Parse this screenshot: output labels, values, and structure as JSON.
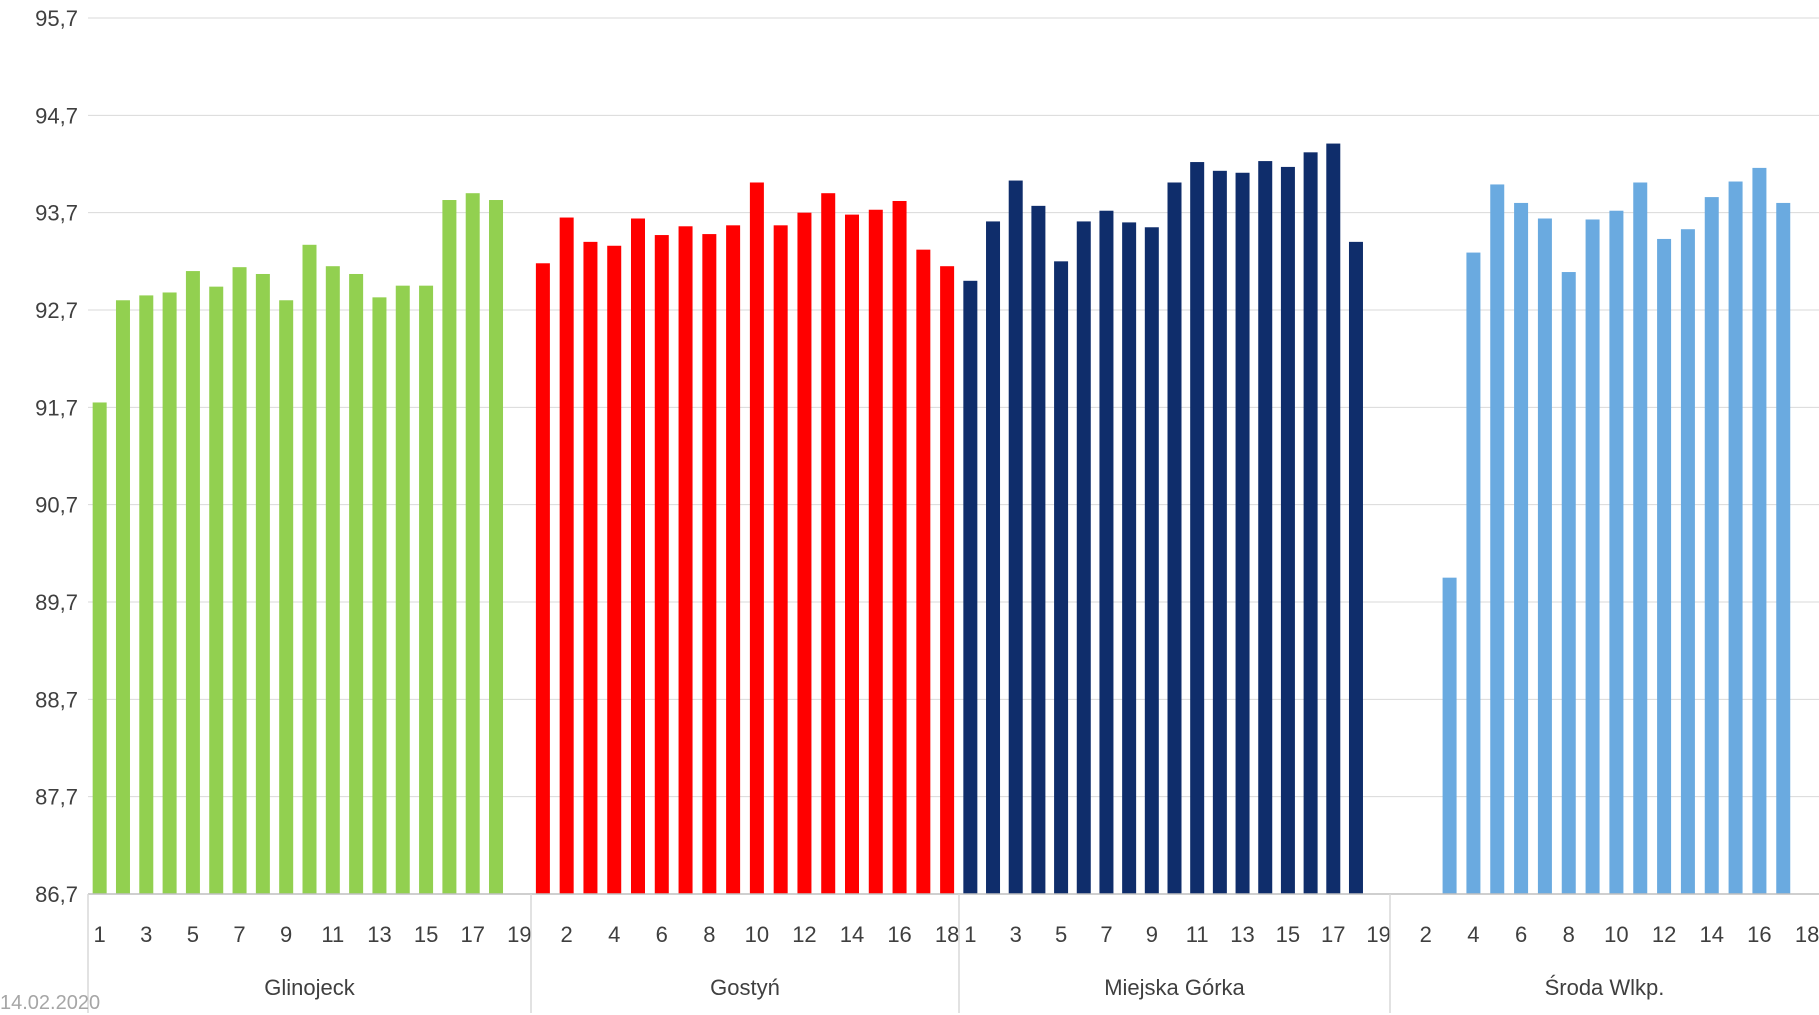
{
  "footer": {
    "date": "14.02.2020"
  },
  "chart_data": {
    "type": "bar",
    "title": "",
    "xlabel": "",
    "ylabel": "",
    "ylim": [
      86.7,
      95.7
    ],
    "yticks": [
      "86,7",
      "87,7",
      "88,7",
      "89,7",
      "90,7",
      "91,7",
      "92,7",
      "93,7",
      "94,7",
      "95,7"
    ],
    "grid": true,
    "legend": "none",
    "groups": [
      {
        "name": "Glinojeck",
        "color": "#92d050",
        "x": [
          1,
          2,
          3,
          4,
          5,
          6,
          7,
          8,
          9,
          10,
          11,
          12,
          13,
          14,
          15,
          16,
          17,
          18,
          19
        ],
        "tick_labels": [
          "1",
          "3",
          "5",
          "7",
          "9",
          "11",
          "13",
          "15",
          "17",
          "19"
        ],
        "values": [
          91.75,
          92.8,
          92.85,
          92.88,
          93.1,
          92.94,
          93.14,
          93.07,
          92.8,
          93.37,
          93.15,
          93.07,
          92.83,
          92.95,
          92.95,
          93.83,
          93.9,
          93.83,
          null
        ]
      },
      {
        "name": "Gostyń",
        "color": "#ff0000",
        "x": [
          1,
          2,
          3,
          4,
          5,
          6,
          7,
          8,
          9,
          10,
          11,
          12,
          13,
          14,
          15,
          16,
          17,
          18
        ],
        "tick_labels": [
          "2",
          "4",
          "6",
          "8",
          "10",
          "12",
          "14",
          "16",
          "18"
        ],
        "values": [
          93.18,
          93.65,
          93.4,
          93.36,
          93.64,
          93.47,
          93.56,
          93.48,
          93.57,
          94.01,
          93.57,
          93.7,
          93.9,
          93.68,
          93.73,
          93.82,
          93.32,
          93.15
        ]
      },
      {
        "name": "Miejska Górka",
        "color": "#0f2d6b",
        "x": [
          1,
          2,
          3,
          4,
          5,
          6,
          7,
          8,
          9,
          10,
          11,
          12,
          13,
          14,
          15,
          16,
          17,
          18,
          19
        ],
        "tick_labels": [
          "1",
          "3",
          "5",
          "7",
          "9",
          "11",
          "13",
          "15",
          "17",
          "19"
        ],
        "values": [
          93.0,
          93.61,
          94.03,
          93.77,
          93.2,
          93.61,
          93.72,
          93.6,
          93.55,
          94.01,
          94.22,
          94.13,
          94.11,
          94.23,
          94.17,
          94.32,
          94.41,
          93.4,
          null
        ]
      },
      {
        "name": "Środa Wlkp.",
        "color": "#6aaae0",
        "x": [
          1,
          2,
          3,
          4,
          5,
          6,
          7,
          8,
          9,
          10,
          11,
          12,
          13,
          14,
          15,
          16,
          17,
          18
        ],
        "tick_labels": [
          "2",
          "4",
          "6",
          "8",
          "10",
          "12",
          "14",
          "16",
          "18"
        ],
        "values": [
          null,
          null,
          89.95,
          93.29,
          93.99,
          93.8,
          93.64,
          93.09,
          93.63,
          93.72,
          94.01,
          93.43,
          93.53,
          93.86,
          94.02,
          94.16,
          93.8,
          null
        ]
      }
    ]
  }
}
